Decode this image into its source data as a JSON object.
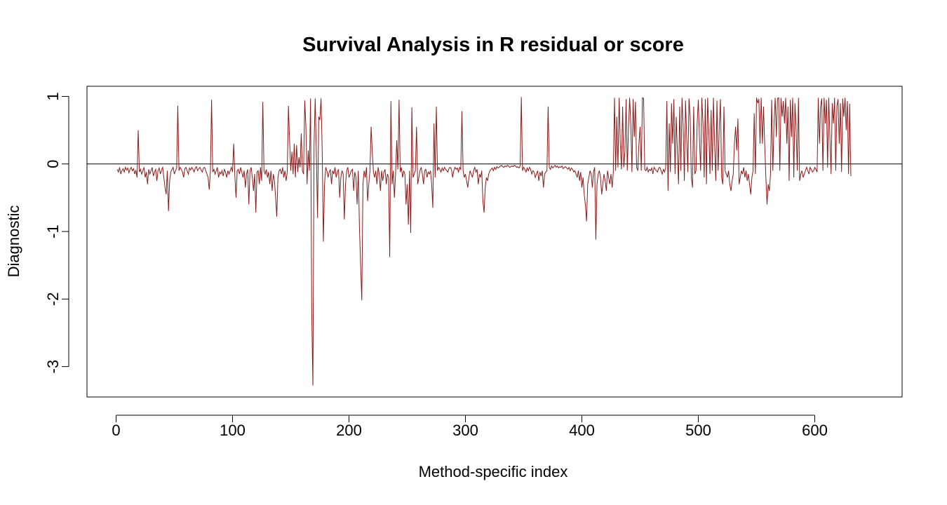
{
  "chart_data": {
    "type": "line",
    "title": "Survival Analysis in R residual or score",
    "xlabel": "Method-specific index",
    "ylabel": "Diagnostic",
    "xlim": [
      -25,
      675
    ],
    "ylim": [
      -3.45,
      1.15
    ],
    "x_ticks": [
      0,
      100,
      200,
      300,
      400,
      500,
      600
    ],
    "x_tick_labels": [
      "0",
      "100",
      "200",
      "300",
      "400",
      "500",
      "600"
    ],
    "y_ticks": [
      -3,
      -2,
      -1,
      0,
      1
    ],
    "y_tick_labels": [
      "-3",
      "-2",
      "-1",
      "0",
      "1"
    ],
    "reference_line": 0,
    "grid": false,
    "series_color": "#8B1A1A",
    "series": [
      {
        "x_start": 1,
        "x_step": 1,
        "values": [
          -0.08,
          -0.12,
          -0.05,
          -0.15,
          -0.1,
          -0.07,
          -0.12,
          -0.05,
          -0.09,
          -0.06,
          -0.13,
          -0.08,
          -0.05,
          -0.1,
          -0.07,
          -0.15,
          -0.09,
          -0.2,
          0.5,
          -0.12,
          -0.08,
          -0.15,
          -0.1,
          -0.05,
          -0.2,
          -0.12,
          -0.3,
          -0.08,
          -0.15,
          -0.1,
          -0.05,
          -0.18,
          -0.12,
          -0.08,
          -0.25,
          -0.1,
          -0.06,
          -0.15,
          -0.09,
          -0.05,
          -0.2,
          -0.35,
          -0.45,
          -0.1,
          -0.7,
          -0.25,
          -0.12,
          -0.08,
          -0.05,
          -0.15,
          -0.1,
          -0.06,
          0.86,
          -0.1,
          -0.05,
          -0.08,
          -0.12,
          -0.2,
          -0.07,
          -0.05,
          -0.1,
          -0.15,
          -0.06,
          -0.09,
          -0.05,
          -0.08,
          -0.12,
          -0.06,
          -0.04,
          -0.1,
          -0.07,
          -0.05,
          -0.09,
          -0.12,
          -0.06,
          -0.05,
          -0.1,
          -0.15,
          -0.2,
          -0.38,
          -0.1,
          0.95,
          -0.12,
          -0.08,
          -0.15,
          -0.1,
          -0.05,
          -0.2,
          -0.12,
          -0.15,
          -0.1,
          -0.18,
          -0.08,
          -0.12,
          -0.2,
          -0.1,
          -0.15,
          -0.1,
          -0.05,
          -0.12,
          0.3,
          -0.18,
          -0.5,
          -0.1,
          -0.08,
          -0.15,
          -0.05,
          -0.12,
          -0.2,
          -0.1,
          -0.35,
          -0.15,
          -0.08,
          -0.6,
          -0.1,
          -0.05,
          -0.2,
          -0.4,
          -0.15,
          -0.72,
          -0.12,
          -0.1,
          -0.3,
          -0.05,
          -0.25,
          0.92,
          -0.1,
          -0.15,
          -0.08,
          -0.2,
          -0.12,
          -0.3,
          -0.1,
          -0.4,
          -0.15,
          -0.25,
          -0.5,
          -0.78,
          -0.2,
          -0.1,
          -0.08,
          -0.15,
          -0.05,
          -0.2,
          -0.1,
          -0.25,
          -0.12,
          0.86,
          0.35,
          -0.1,
          0.18,
          -0.15,
          0.3,
          -0.2,
          0.28,
          -0.12,
          0.1,
          -0.05,
          0.45,
          -0.1,
          -0.15,
          0.94,
          0.55,
          -0.3,
          0.2,
          -0.1,
          0.97,
          -2.2,
          -3.28,
          0.3,
          0.97,
          0.1,
          -0.8,
          0.7,
          0.65,
          0.97,
          0.2,
          -1.15,
          -0.3,
          -0.05,
          -0.1,
          -0.2,
          -0.12,
          -0.08,
          -0.3,
          -0.1,
          -0.15,
          -0.05,
          -0.2,
          -0.12,
          -0.08,
          -0.5,
          -0.2,
          -0.1,
          -0.15,
          -0.82,
          -0.3,
          -0.1,
          -0.05,
          -0.2,
          -0.15,
          -0.1,
          -0.08,
          -0.4,
          -0.12,
          -0.2,
          -0.6,
          -0.1,
          -0.95,
          -1.5,
          -2.02,
          -0.3,
          -0.1,
          -0.2,
          -0.05,
          -0.55,
          -0.3,
          -0.1,
          0.55,
          0.18,
          -0.12,
          -0.2,
          -0.1,
          -0.3,
          -0.05,
          -0.15,
          -0.4,
          -0.1,
          -0.25,
          -0.12,
          -0.08,
          -0.3,
          -0.15,
          -0.2,
          -1.38,
          0.93,
          -0.3,
          -0.1,
          -0.5,
          -0.15,
          0.35,
          -0.08,
          0.95,
          -0.12,
          -0.05,
          -0.2,
          -0.1,
          -0.15,
          -0.6,
          -0.3,
          -0.9,
          -0.1,
          -1.02,
          0.84,
          -0.2,
          -0.15,
          -0.1,
          0.55,
          -0.3,
          -0.2,
          -0.1,
          -0.05,
          -0.15,
          -0.3,
          -0.1,
          -0.08,
          -0.2,
          -0.12,
          -0.15,
          -0.1,
          -0.3,
          -0.65,
          0.6,
          -0.2,
          0.85,
          -0.1,
          -0.05,
          -0.08,
          -0.12,
          -0.06,
          -0.1,
          -0.05,
          -0.08,
          -0.1,
          -0.12,
          -0.06,
          -0.05,
          -0.08,
          -0.2,
          -0.1,
          -0.05,
          -0.08,
          -0.06,
          -0.12,
          -0.05,
          -0.08,
          0.78,
          -0.1,
          -0.2,
          -0.15,
          -0.25,
          -0.35,
          -0.2,
          -0.1,
          -0.15,
          -0.2,
          -0.1,
          -0.05,
          -0.12,
          -0.08,
          -0.3,
          -0.15,
          -0.2,
          -0.1,
          -0.55,
          -0.72,
          -0.35,
          -0.2,
          -0.25,
          -0.15,
          -0.1,
          -0.08,
          -0.06,
          -0.1,
          -0.05,
          -0.08,
          -0.04,
          -0.06,
          -0.05,
          -0.03,
          -0.02,
          -0.04,
          -0.05,
          -0.03,
          -0.04,
          -0.02,
          -0.03,
          -0.05,
          -0.04,
          -0.03,
          -0.04,
          -0.02,
          -0.03,
          -0.05,
          -0.04,
          -0.06,
          -0.03,
          0.99,
          -0.1,
          -0.05,
          -0.08,
          -0.12,
          -0.06,
          -0.1,
          -0.05,
          -0.08,
          -0.15,
          -0.1,
          -0.12,
          -0.2,
          -0.15,
          -0.1,
          -0.25,
          -0.12,
          -0.18,
          -0.1,
          -0.35,
          -0.15,
          -0.12,
          -0.1,
          0.85,
          -0.05,
          -0.08,
          -0.03,
          -0.06,
          -0.04,
          -0.02,
          -0.05,
          -0.03,
          -0.06,
          -0.04,
          -0.05,
          -0.03,
          -0.07,
          -0.05,
          -0.04,
          -0.06,
          -0.08,
          -0.05,
          -0.1,
          -0.06,
          -0.08,
          -0.12,
          -0.1,
          -0.15,
          -0.2,
          -0.1,
          -0.25,
          -0.12,
          -0.35,
          -0.2,
          -0.45,
          -0.6,
          -0.85,
          -0.3,
          -0.2,
          -0.1,
          -0.15,
          -0.35,
          -0.12,
          -0.05,
          -1.12,
          -0.3,
          -0.15,
          -0.1,
          -0.2,
          -0.45,
          -0.3,
          -0.15,
          -0.25,
          -0.4,
          -0.1,
          -0.2,
          -0.3,
          -0.15,
          -0.35,
          -0.12,
          0.98,
          -0.1,
          0.7,
          -0.05,
          0.98,
          0.3,
          -0.08,
          0.85,
          -0.05,
          0.2,
          0.96,
          -0.1,
          0.5,
          0.98,
          0.6,
          -0.12,
          0.96,
          0.4,
          0.92,
          -0.05,
          -0.1,
          0.3,
          0.55,
          -0.1,
          0.98,
          0.97,
          -0.08,
          -0.1,
          -0.05,
          -0.12,
          -0.08,
          -0.1,
          -0.06,
          -0.15,
          -0.05,
          -0.08,
          -0.1,
          -0.12,
          -0.06,
          -0.05,
          -0.1,
          -0.15,
          -0.08,
          -0.12,
          -0.05,
          0.93,
          -0.4,
          0.6,
          -0.12,
          0.9,
          0.3,
          0.96,
          -0.15,
          0.7,
          0.2,
          -0.3,
          0.85,
          -0.1,
          0.98,
          0.55,
          -0.25,
          0.94,
          0.4,
          -0.12,
          0.97,
          0.7,
          -0.2,
          -0.35,
          0.85,
          -0.15,
          -0.1,
          0.6,
          0.95,
          0.35,
          -0.1,
          0.98,
          0.6,
          -0.2,
          0.96,
          -0.3,
          0.98,
          0.5,
          -0.15,
          0.8,
          -0.1,
          0.98,
          0.3,
          -0.25,
          0.94,
          -0.1,
          0.55,
          0.96,
          -0.2,
          -0.3,
          0.85,
          -0.1,
          -0.15,
          -0.2,
          -0.1,
          -0.3,
          -0.4,
          -0.25,
          -0.15,
          0.3,
          0.55,
          0.2,
          0.67,
          -0.3,
          -0.2,
          -0.1,
          -0.15,
          -0.05,
          -0.2,
          -0.1,
          -0.25,
          -0.15,
          -0.3,
          -0.45,
          -0.2,
          -0.1,
          0.75,
          -0.15,
          0.98,
          0.9,
          0.96,
          0.3,
          0.98,
          0.3,
          0.85,
          0.3,
          -0.2,
          -0.6,
          -0.3,
          -0.4,
          -0.15,
          0.95,
          -0.1,
          0.6,
          0.98,
          0.4,
          0.97,
          0.98,
          -0.1,
          0.98,
          0.7,
          0.93,
          0.6,
          0.98,
          0.3,
          0.85,
          -0.25,
          0.95,
          0.4,
          0.98,
          -0.2,
          0.9,
          0.5,
          -0.1,
          0.98,
          -0.25,
          -0.15,
          -0.1,
          -0.2,
          -0.15,
          -0.1,
          -0.05,
          -0.1,
          -0.15,
          -0.05,
          -0.08,
          -0.12,
          -0.1,
          -0.05,
          -0.08,
          -0.12,
          0.98,
          0.3,
          0.85,
          0.97,
          -0.1,
          0.98,
          0.6,
          0.95,
          -0.05,
          0.98,
          0.4,
          -0.15,
          0.9,
          0.6,
          0.98,
          -0.1,
          0.85,
          0.96,
          0.3,
          0.9,
          -0.12,
          0.97,
          0.7,
          0.98,
          0.5,
          0.93,
          -0.15,
          0.89,
          -0.18
        ]
      }
    ]
  }
}
